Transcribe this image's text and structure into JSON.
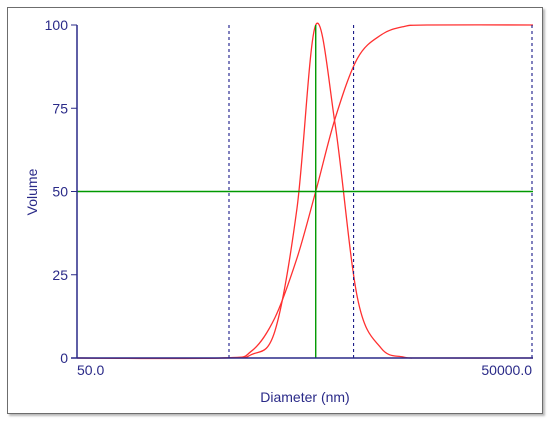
{
  "chart_data": {
    "type": "line",
    "xlabel": "Diameter (nm)",
    "ylabel": "Volume",
    "xlim": [
      50.0,
      50000.0
    ],
    "x_scale": "log",
    "ylim": [
      0,
      100
    ],
    "x_tick_labels": [
      "50.0",
      "50000.0"
    ],
    "y_ticks": [
      0,
      25,
      50,
      75,
      100
    ],
    "grid": false,
    "colors": {
      "axis": "#2a2a88",
      "series": "#ff3030",
      "marker": "#009900",
      "dash": "#1a1a88"
    },
    "series": [
      {
        "role": "distribution",
        "x": [
          50,
          450,
          700,
          1000,
          1400,
          1860,
          2500,
          3500,
          5000,
          7000,
          10000,
          50000
        ],
        "y": [
          0,
          0,
          1,
          8,
          45,
          100,
          70,
          18,
          3,
          0.3,
          0,
          0
        ]
      },
      {
        "role": "cumulative",
        "x": [
          50,
          450,
          700,
          1000,
          1400,
          1860,
          2500,
          3500,
          5000,
          7000,
          10000,
          50000
        ],
        "y": [
          0,
          0,
          2,
          12,
          30,
          50,
          72,
          90,
          97,
          99.5,
          100,
          100
        ]
      }
    ],
    "reference_lines": {
      "vertical_dashed_x": [
        500,
        3300,
        50000
      ],
      "vertical_solid_x": 1860,
      "horizontal_solid_y": 50
    }
  }
}
